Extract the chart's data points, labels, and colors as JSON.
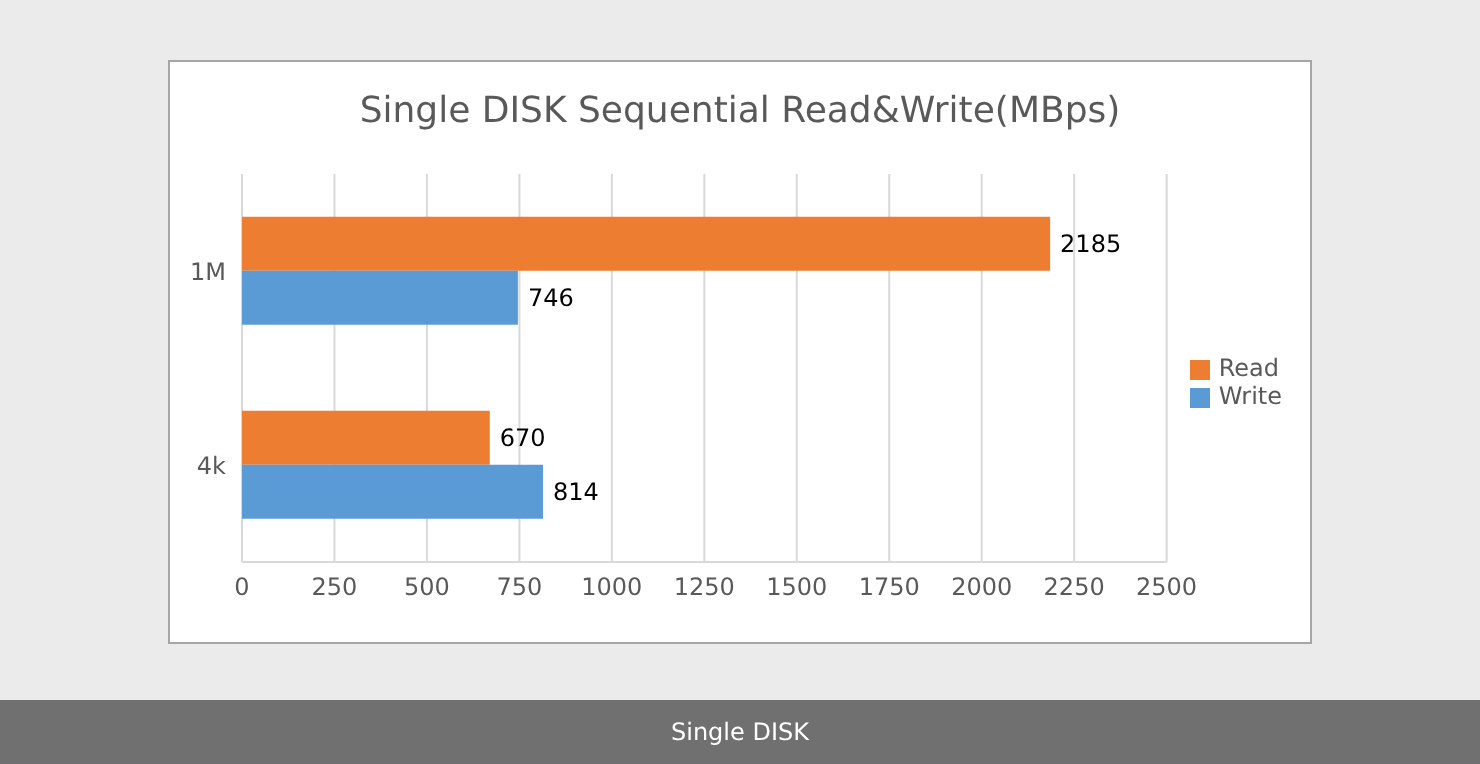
{
  "chart_data": {
    "type": "bar",
    "orientation": "horizontal",
    "title": "Single DISK Sequential Read&Write(MBps)",
    "categories": [
      "1M",
      "4k"
    ],
    "series": [
      {
        "name": "Read",
        "color": "#ed7d31",
        "values": [
          2185,
          670
        ]
      },
      {
        "name": "Write",
        "color": "#5b9bd5",
        "values": [
          746,
          814
        ]
      }
    ],
    "xlim": [
      0,
      2500
    ],
    "xticks": [
      0,
      250,
      500,
      750,
      1000,
      1250,
      1500,
      1750,
      2000,
      2250,
      2500
    ],
    "grid": "x",
    "legend": "right",
    "data_labels": true,
    "annotations": [
      "Single DISK"
    ]
  }
}
